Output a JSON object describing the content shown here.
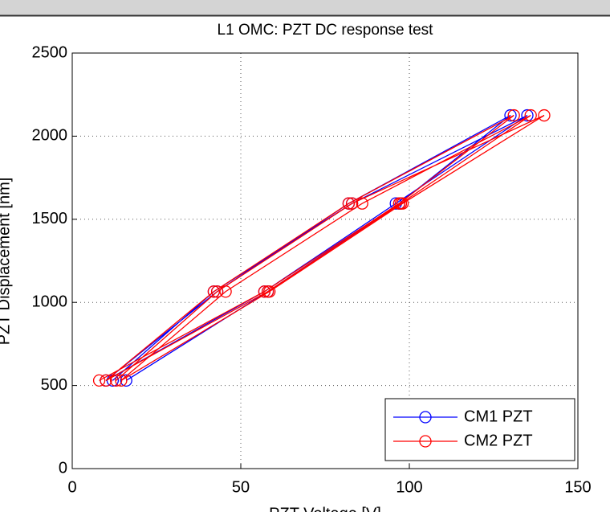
{
  "chart_data": {
    "type": "line",
    "title": "L1 OMC: PZT DC response test",
    "x_label": "PZT Voltage [V]",
    "y_label": "PZT Displacement [nm]",
    "xlim": [
      0,
      150
    ],
    "xticks": [
      0,
      50,
      100,
      150
    ],
    "ylim": [
      0,
      2500
    ],
    "yticks": [
      0,
      500,
      1000,
      1500,
      2000,
      2500
    ],
    "grid": true,
    "legend": "lower right",
    "series": [
      {
        "name": "CM1 PZT",
        "color": "#0000ff",
        "x": [
          16,
          58,
          97,
          130,
          82,
          43,
          10,
          57,
          96,
          135,
          83,
          42,
          12
        ],
        "values": [
          530,
          1065,
          1595,
          2125,
          1595,
          1065,
          530,
          1065,
          1595,
          2125,
          1595,
          1065,
          530
        ]
      },
      {
        "name": "CM2 PZT",
        "color": "#ff0000",
        "x": [
          8,
          57,
          97,
          131,
          82,
          42,
          10,
          58,
          97.5,
          136,
          86,
          45.5,
          14.5,
          58.5,
          98,
          140,
          83,
          43,
          13
        ],
        "values": [
          530,
          1065,
          1595,
          2125,
          1595,
          1065,
          530,
          1065,
          1595,
          2125,
          1595,
          1065,
          530,
          1065,
          1595,
          2125,
          1595,
          1065,
          530
        ]
      }
    ]
  }
}
